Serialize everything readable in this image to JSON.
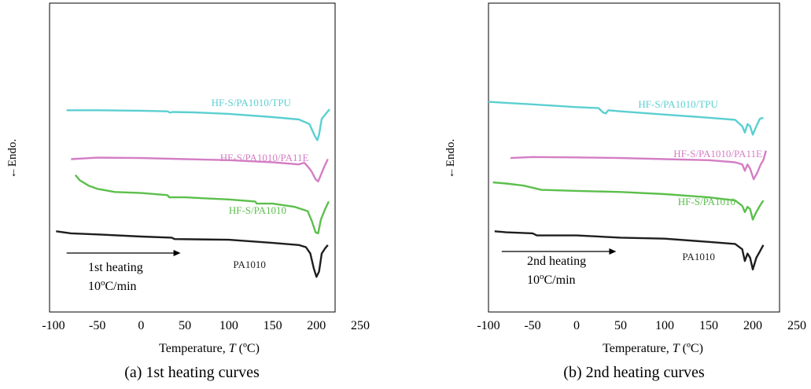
{
  "colors": {
    "tpu": "#5ccfd1",
    "pa11e": "#d47ec4",
    "hfs": "#5cbf4c",
    "pa1010": "#1e1e1e"
  },
  "chart_data": [
    {
      "type": "line",
      "title": "(a) 1st heating curves",
      "xlabel": "Temperature, T (ºC)",
      "xlabel_prefix": "Temperature, ",
      "xlabel_var": "T",
      "xlabel_unit": " (ºC)",
      "ylabel": "←Endo.",
      "xlim": [
        -100,
        250
      ],
      "xticks": [
        -100,
        -50,
        0,
        50,
        100,
        150,
        200,
        250
      ],
      "grid": false,
      "annotation": {
        "line1": "1st heating",
        "line2_pre": "10",
        "line2_sup": "o",
        "line2_post": "C/min",
        "arrow_from": -85,
        "arrow_to": 45
      },
      "series": [
        {
          "name": "HF-S/PA1010/TPU",
          "color_key": "tpu",
          "label_x": 80,
          "x": [
            -85,
            -50,
            0,
            30,
            33,
            36,
            60,
            100,
            150,
            180,
            192,
            198,
            201,
            203,
            206,
            210,
            215
          ],
          "y": [
            0.795,
            0.795,
            0.793,
            0.79,
            0.784,
            0.787,
            0.785,
            0.778,
            0.763,
            0.752,
            0.73,
            0.675,
            0.654,
            0.68,
            0.755,
            0.775,
            0.8
          ]
        },
        {
          "name": "HF-S/PA1010/PA11E",
          "color_key": "pa11e",
          "label_x": 90,
          "x": [
            -80,
            -50,
            0,
            50,
            100,
            150,
            180,
            186,
            189,
            194,
            199,
            202,
            205,
            209,
            213
          ],
          "y": [
            0.565,
            0.572,
            0.57,
            0.565,
            0.56,
            0.55,
            0.54,
            0.548,
            0.535,
            0.51,
            0.47,
            0.46,
            0.49,
            0.53,
            0.565
          ]
        },
        {
          "name": "HF-S/PA1010",
          "color_key": "hfs",
          "label_x": 100,
          "x": [
            -75,
            -70,
            -60,
            -50,
            -30,
            0,
            30,
            32,
            50,
            100,
            130,
            132,
            150,
            175,
            190,
            195,
            199,
            202,
            205,
            210,
            214
          ],
          "y": [
            0.49,
            0.465,
            0.44,
            0.425,
            0.41,
            0.405,
            0.395,
            0.385,
            0.385,
            0.375,
            0.365,
            0.355,
            0.355,
            0.34,
            0.32,
            0.27,
            0.22,
            0.215,
            0.28,
            0.33,
            0.365
          ]
        },
        {
          "name": "PA1010",
          "color_key": "pa1010",
          "label_x": 105,
          "x": [
            -97,
            -80,
            -50,
            0,
            35,
            38,
            100,
            150,
            180,
            188,
            193,
            197,
            200,
            203,
            206,
            210,
            213
          ],
          "y": [
            0.225,
            0.215,
            0.21,
            0.2,
            0.195,
            0.188,
            0.185,
            0.17,
            0.16,
            0.15,
            0.12,
            0.05,
            0.01,
            0.035,
            0.12,
            0.145,
            0.16
          ]
        }
      ]
    },
    {
      "type": "line",
      "title": "(b) 2nd heating curves",
      "xlabel": "Temperature, T (ºC)",
      "xlabel_prefix": "Temperature, ",
      "xlabel_var": "T",
      "xlabel_unit": " (ºC)",
      "ylabel": "←Endo.",
      "xlim": [
        -100,
        250
      ],
      "xticks": [
        -100,
        -50,
        0,
        50,
        100,
        150,
        200,
        250
      ],
      "grid": false,
      "annotation": {
        "line1": "2nd heating",
        "line2_pre": "10",
        "line2_sup": "o",
        "line2_post": "C/min",
        "arrow_from": -85,
        "arrow_to": 45
      },
      "series": [
        {
          "name": "HF-S/PA1010/TPU",
          "color_key": "tpu",
          "label_x": 70,
          "x": [
            -100,
            -50,
            0,
            25,
            30,
            33,
            36,
            50,
            100,
            150,
            180,
            188,
            191,
            194,
            197,
            200,
            204,
            208,
            212
          ],
          "y": [
            0.835,
            0.823,
            0.81,
            0.805,
            0.785,
            0.78,
            0.795,
            0.79,
            0.775,
            0.76,
            0.75,
            0.72,
            0.69,
            0.73,
            0.72,
            0.68,
            0.72,
            0.755,
            0.76
          ]
        },
        {
          "name": "HF-S/PA1010/PA11E",
          "color_key": "pa11e",
          "label_x": 110,
          "x": [
            -75,
            -50,
            0,
            50,
            100,
            150,
            180,
            188,
            191,
            194,
            197,
            201,
            205,
            209,
            212,
            215
          ],
          "y": [
            0.57,
            0.575,
            0.573,
            0.57,
            0.565,
            0.56,
            0.55,
            0.54,
            0.51,
            0.54,
            0.52,
            0.47,
            0.5,
            0.54,
            0.56,
            0.605
          ]
        },
        {
          "name": "HF-S/PA1010",
          "color_key": "hfs",
          "label_x": 115,
          "x": [
            -95,
            -80,
            -60,
            -40,
            0,
            50,
            100,
            150,
            180,
            188,
            191,
            194,
            197,
            200,
            204,
            208,
            212
          ],
          "y": [
            0.455,
            0.45,
            0.44,
            0.42,
            0.415,
            0.41,
            0.4,
            0.385,
            0.37,
            0.345,
            0.315,
            0.34,
            0.33,
            0.28,
            0.315,
            0.345,
            0.37
          ]
        },
        {
          "name": "PA1010",
          "color_key": "pa1010",
          "label_x": 120,
          "x": [
            -93,
            -80,
            -50,
            -45,
            0,
            50,
            100,
            150,
            180,
            188,
            191,
            194,
            197,
            200,
            204,
            208,
            212
          ],
          "y": [
            0.225,
            0.22,
            0.215,
            0.205,
            0.205,
            0.195,
            0.19,
            0.175,
            0.165,
            0.14,
            0.085,
            0.12,
            0.1,
            0.045,
            0.1,
            0.13,
            0.16
          ]
        }
      ]
    }
  ]
}
